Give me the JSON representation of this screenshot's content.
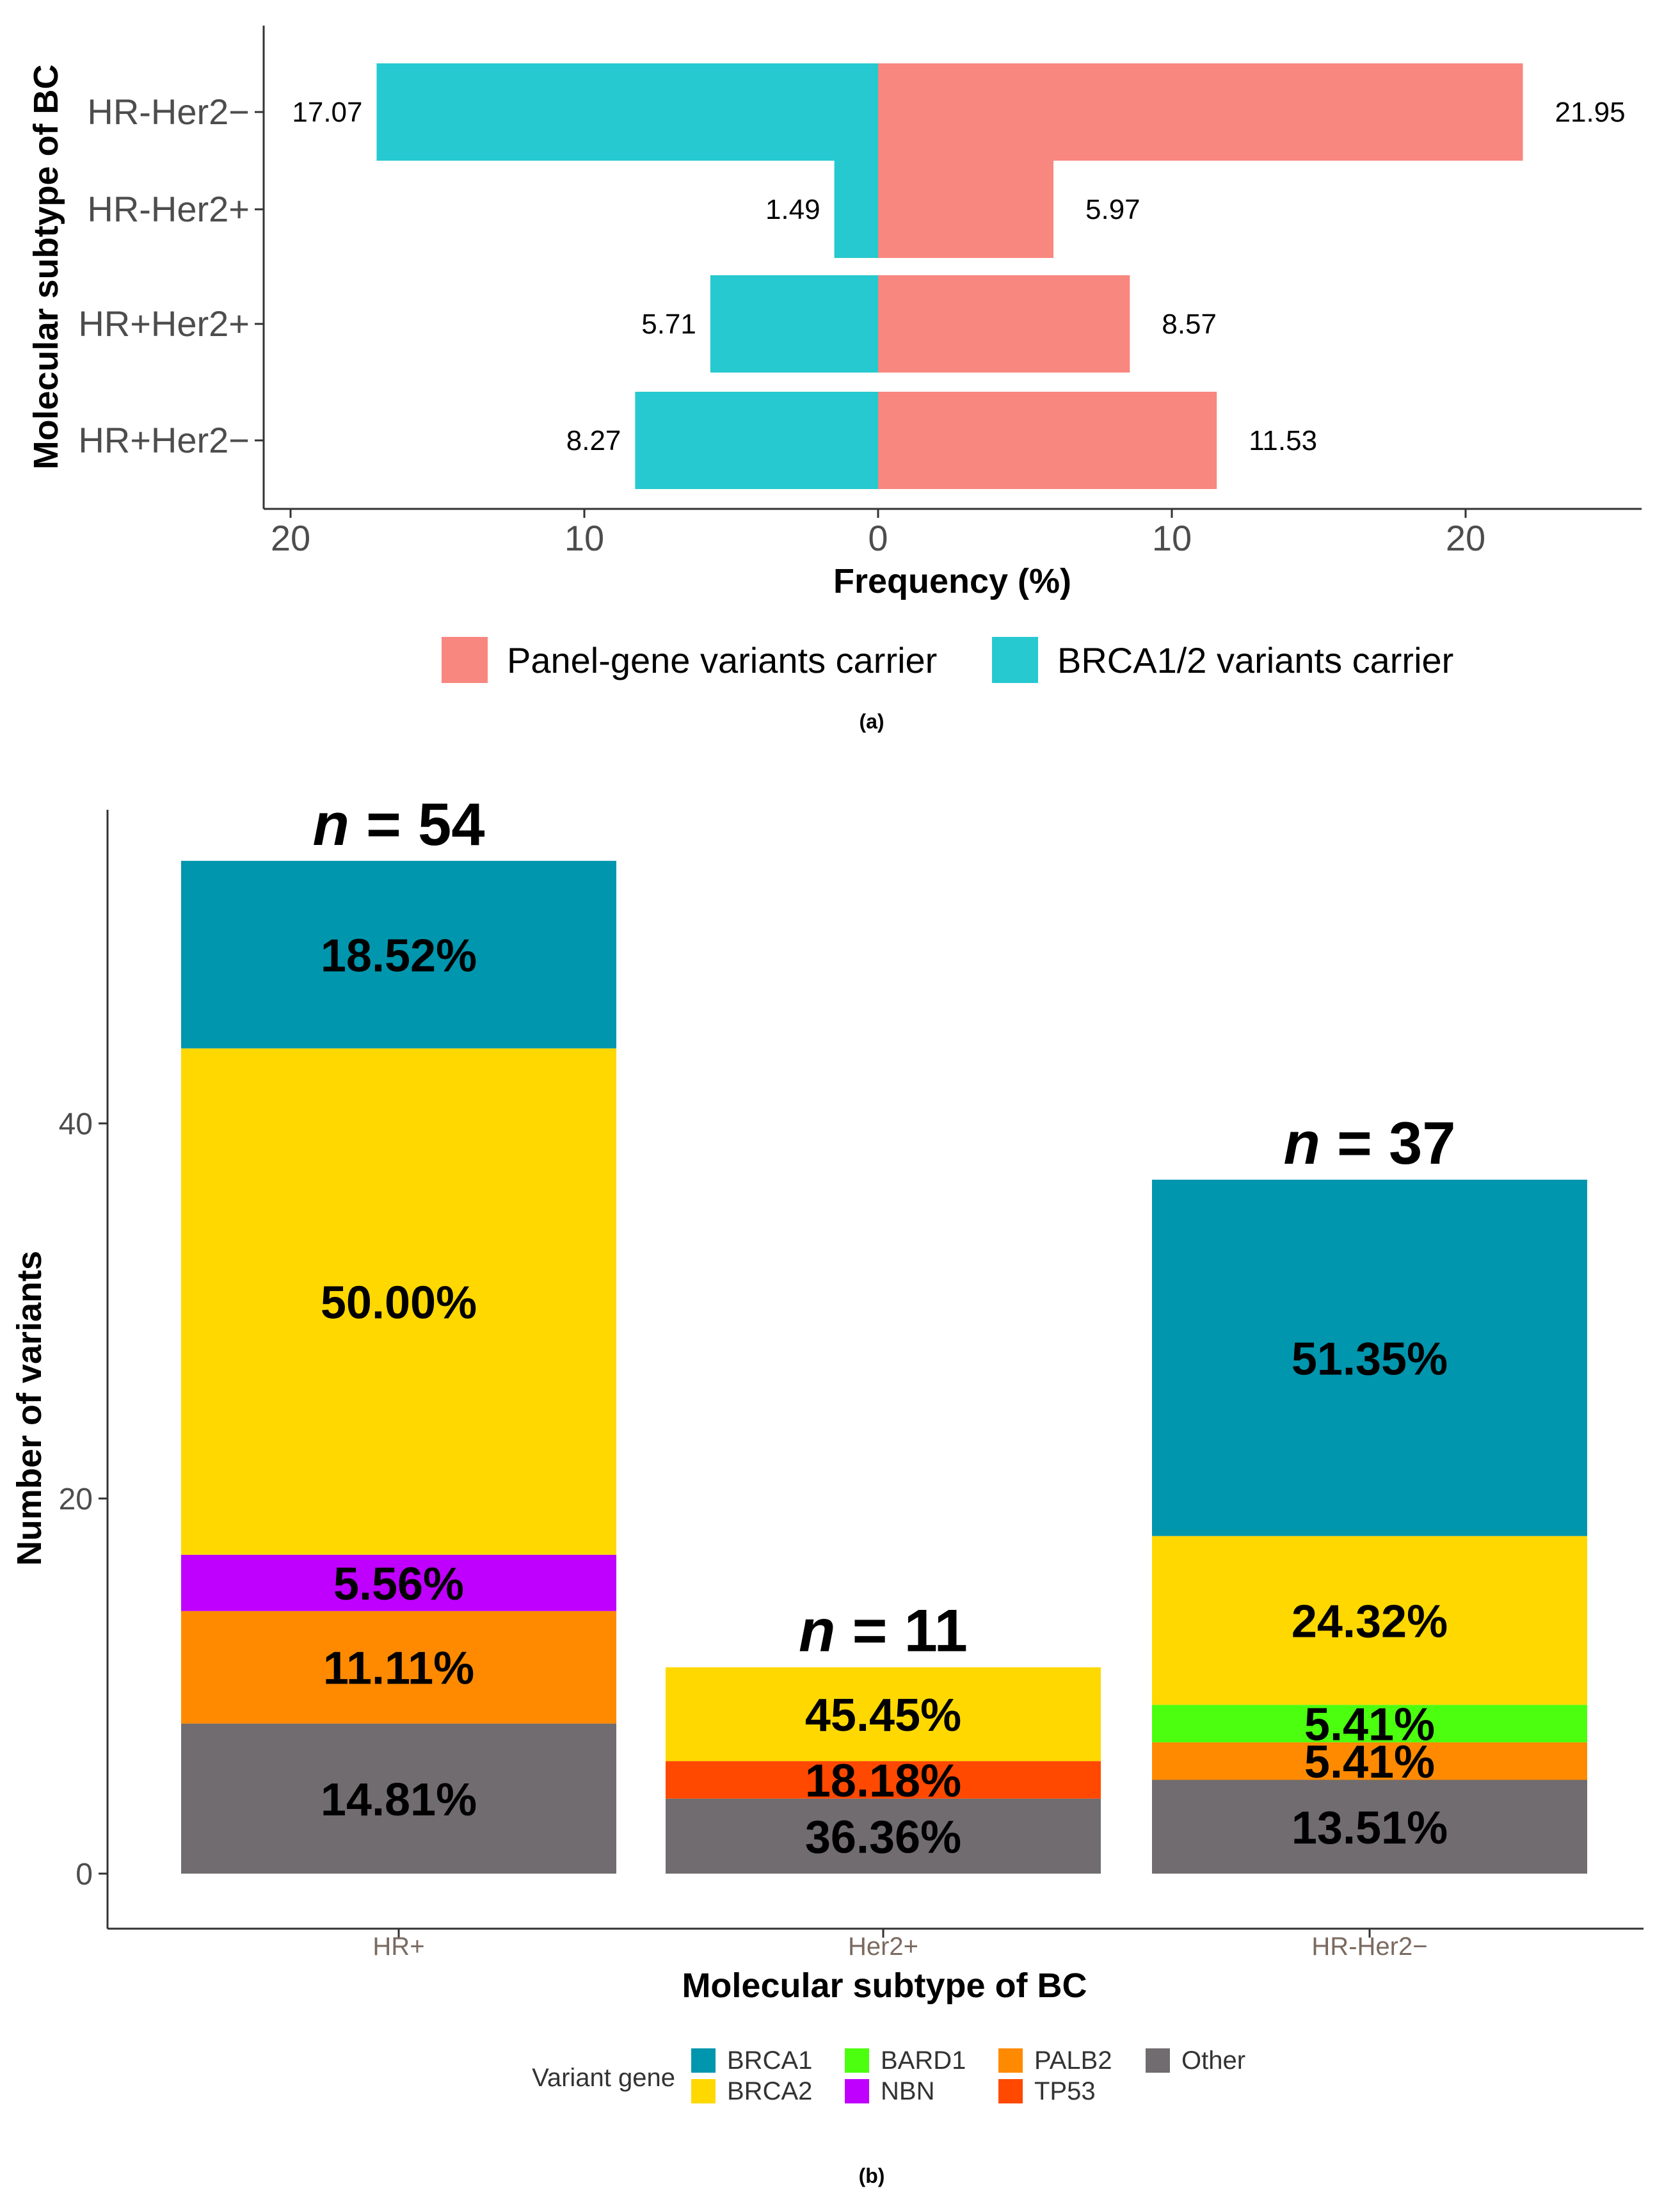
{
  "chart_data": [
    {
      "type": "bar",
      "orientation": "horizontal-diverging",
      "caption": "(a)",
      "xlabel": "Frequency (%)",
      "ylabel": "Molecular subtype of BC",
      "x_ticks": [
        "20",
        "10",
        "0",
        "10",
        "20"
      ],
      "xlim": [
        -21,
        26
      ],
      "categories": [
        "HR-Her2−",
        "HR-Her2+",
        "HR+Her2+",
        "HR+Her2−"
      ],
      "series": [
        {
          "name": "Panel-gene variants carrier",
          "color": "#F8877F",
          "values": [
            21.95,
            5.97,
            8.57,
            11.53
          ],
          "labels": [
            "21.95",
            "5.97",
            "8.57",
            "11.53"
          ]
        },
        {
          "name": "BRCA1/2 variants carrier",
          "color": "#26C9CF",
          "values": [
            17.07,
            1.49,
            5.71,
            8.27
          ],
          "labels": [
            "17.07",
            "1.49",
            "5.71",
            "8.27"
          ]
        }
      ],
      "legend_position": "bottom"
    },
    {
      "type": "bar",
      "orientation": "vertical-stacked",
      "caption": "(b)",
      "xlabel": "Molecular subtype of BC",
      "ylabel": "Number of variants",
      "y_ticks": [
        "0",
        "20",
        "40"
      ],
      "ylim": [
        0,
        56
      ],
      "categories": [
        "HR+",
        "Her2+",
        "HR-Her2−"
      ],
      "totals": [
        "n = 54",
        "n = 11",
        "n = 37"
      ],
      "total_values": [
        54,
        11,
        37
      ],
      "legend_title": "Variant gene",
      "legend": [
        {
          "name": "BRCA1",
          "color": "#0096AE"
        },
        {
          "name": "BRCA2",
          "color": "#FFD800"
        },
        {
          "name": "BARD1",
          "color": "#4CFF0E"
        },
        {
          "name": "NBN",
          "color": "#BF00FF"
        },
        {
          "name": "PALB2",
          "color": "#FF8A00"
        },
        {
          "name": "TP53",
          "color": "#FF4800"
        },
        {
          "name": "Other",
          "color": "#716C70"
        }
      ],
      "stacks": [
        [
          {
            "gene": "Other",
            "value": 8,
            "label": "14.81%"
          },
          {
            "gene": "PALB2",
            "value": 6,
            "label": "11.11%"
          },
          {
            "gene": "NBN",
            "value": 3,
            "label": "5.56%"
          },
          {
            "gene": "BRCA2",
            "value": 27,
            "label": "50.00%"
          },
          {
            "gene": "BRCA1",
            "value": 10,
            "label": "18.52%"
          }
        ],
        [
          {
            "gene": "Other",
            "value": 4,
            "label": "36.36%"
          },
          {
            "gene": "TP53",
            "value": 2,
            "label": "18.18%"
          },
          {
            "gene": "BRCA2",
            "value": 5,
            "label": "45.45%"
          }
        ],
        [
          {
            "gene": "Other",
            "value": 5,
            "label": "13.51%"
          },
          {
            "gene": "PALB2",
            "value": 2,
            "label": "5.41%"
          },
          {
            "gene": "BARD1",
            "value": 2,
            "label": "5.41%"
          },
          {
            "gene": "BRCA2",
            "value": 9,
            "label": "24.32%"
          },
          {
            "gene": "BRCA1",
            "value": 19,
            "label": "51.35%"
          }
        ]
      ]
    }
  ]
}
